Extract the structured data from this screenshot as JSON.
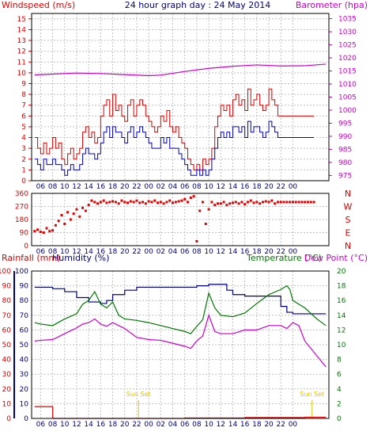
{
  "header": {
    "left": "Windspeed (m/s)",
    "center": "24 hour graph day : 24 May 2014",
    "right": "Barometer (hpa)"
  },
  "colors": {
    "frame": "#000000",
    "grid": "#c0c0c0",
    "red": "#e00000",
    "blue": "#0000cc",
    "magenta": "#cc00cc",
    "green": "#007700",
    "navy": "#000080",
    "olive": "#b0a000",
    "sunset": "#e0c000"
  },
  "chart_data": [
    {
      "type": "line",
      "name": "wind-panel",
      "x_ticks": [
        "06",
        "08",
        "10",
        "12",
        "14",
        "16",
        "18",
        "20",
        "22",
        "00",
        "02",
        "04",
        "06",
        "08",
        "10",
        "12",
        "14",
        "16",
        "18",
        "20",
        "22",
        "00"
      ],
      "y_left": {
        "ticks": [
          0,
          1,
          2,
          3,
          4,
          5,
          6,
          7,
          8,
          9,
          10,
          11,
          12,
          13,
          14,
          15
        ],
        "range": [
          0,
          15.5
        ]
      },
      "y_right": {
        "ticks": [
          975,
          980,
          985,
          990,
          995,
          1000,
          1005,
          1010,
          1015,
          1020,
          1025,
          1030,
          1035
        ],
        "range": [
          973,
          1037
        ]
      },
      "series": [
        {
          "role": "gust",
          "color": "red",
          "x": [
            5,
            5.5,
            6,
            6.5,
            7,
            7.5,
            8,
            8.5,
            9,
            9.5,
            10,
            10.5,
            11,
            11.5,
            12,
            12.5,
            13,
            13.5,
            14,
            14.5,
            15,
            15.5,
            16,
            16.5,
            17,
            17.5,
            18,
            18.5,
            19,
            19.5,
            20,
            20.5,
            21,
            21.5,
            22,
            22.5,
            23,
            23.5,
            24,
            24.5,
            25,
            25.5,
            26,
            26.5,
            27,
            27.5,
            28,
            28.5,
            29,
            29.5,
            30,
            30.5,
            31,
            31.5,
            32,
            32.5,
            33,
            33.5,
            34,
            34.5,
            35,
            35.5,
            36,
            36.5,
            37,
            37.5,
            38,
            38.5,
            39,
            39.5,
            40,
            40.5,
            41,
            41.5,
            42,
            42.5,
            43,
            43.5,
            44,
            44.5,
            45,
            45.5,
            46,
            46.5,
            47,
            47.5,
            48,
            48.5,
            49,
            49.5,
            50,
            50.5,
            51,
            51.5
          ],
          "values": [
            4.0,
            3.0,
            2.5,
            3.5,
            2.5,
            3.0,
            4.0,
            3.0,
            3.5,
            2.0,
            1.5,
            2.5,
            3.0,
            2.0,
            2.5,
            3.0,
            4.5,
            5.0,
            4.0,
            4.5,
            3.5,
            4.0,
            6.0,
            7.0,
            7.5,
            6.0,
            8.0,
            6.5,
            7.0,
            6.0,
            5.5,
            7.0,
            7.5,
            6.0,
            7.0,
            7.5,
            7.0,
            6.0,
            5.5,
            5.0,
            4.5,
            5.0,
            6.0,
            5.5,
            6.5,
            5.0,
            4.5,
            5.0,
            4.0,
            3.5,
            3.0,
            2.0,
            1.5,
            1.0,
            1.5,
            1.0,
            2.0,
            1.5,
            2.0,
            3.0,
            5.0,
            6.0,
            7.0,
            6.5,
            7.0,
            6.0,
            7.5,
            8.0,
            7.0,
            7.5,
            6.5,
            8.5,
            7.0,
            7.5,
            8.0,
            7.0,
            6.5,
            7.0,
            8.5,
            7.5,
            7.0,
            6.0,
            6.0,
            6.0,
            6.0,
            6.0,
            6.0,
            6.0,
            6.0,
            6.0,
            6.0,
            6.0,
            6.0,
            6.0
          ]
        },
        {
          "role": "average",
          "color": "blue",
          "x": [
            5,
            5.5,
            6,
            6.5,
            7,
            7.5,
            8,
            8.5,
            9,
            9.5,
            10,
            10.5,
            11,
            11.5,
            12,
            12.5,
            13,
            13.5,
            14,
            14.5,
            15,
            15.5,
            16,
            16.5,
            17,
            17.5,
            18,
            18.5,
            19,
            19.5,
            20,
            20.5,
            21,
            21.5,
            22,
            22.5,
            23,
            23.5,
            24,
            24.5,
            25,
            25.5,
            26,
            26.5,
            27,
            27.5,
            28,
            28.5,
            29,
            29.5,
            30,
            30.5,
            31,
            31.5,
            32,
            32.5,
            33,
            33.5,
            34,
            34.5,
            35,
            35.5,
            36,
            36.5,
            37,
            37.5,
            38,
            38.5,
            39,
            39.5,
            40,
            40.5,
            41,
            41.5,
            42,
            42.5,
            43,
            43.5,
            44,
            44.5,
            45,
            45.5,
            46,
            46.5,
            47,
            47.5,
            48,
            48.5,
            49,
            49.5,
            50,
            50.5,
            51,
            51.5
          ],
          "values": [
            2.0,
            1.5,
            1.0,
            2.0,
            1.5,
            1.5,
            2.0,
            1.5,
            1.5,
            1.0,
            0.5,
            1.0,
            1.5,
            1.0,
            1.0,
            1.5,
            2.5,
            3.0,
            2.5,
            2.5,
            2.0,
            2.5,
            3.5,
            4.5,
            5.0,
            4.0,
            5.0,
            4.5,
            4.5,
            4.0,
            3.5,
            4.5,
            5.0,
            4.0,
            4.5,
            5.0,
            4.5,
            4.0,
            3.5,
            3.0,
            3.0,
            3.0,
            4.0,
            3.5,
            4.0,
            3.0,
            3.0,
            3.0,
            2.5,
            2.0,
            1.5,
            1.0,
            0.5,
            0.5,
            1.0,
            0.5,
            1.0,
            0.5,
            1.0,
            2.0,
            3.0,
            4.0,
            4.5,
            4.0,
            4.5,
            4.0,
            5.0,
            5.0,
            4.5,
            5.0,
            4.0,
            5.5,
            4.5,
            5.0,
            5.0,
            4.5,
            4.0,
            4.5,
            5.5,
            5.0,
            4.5,
            4.0,
            4.0,
            4.0,
            4.0,
            4.0,
            4.0,
            4.0,
            4.0,
            4.0,
            4.0,
            4.0,
            4.0,
            4.0
          ]
        },
        {
          "role": "barometer",
          "color": "magenta",
          "axis": "right",
          "x": [
            5,
            8,
            12,
            16,
            20,
            24,
            26,
            30,
            34,
            38,
            42,
            46,
            50,
            53.5
          ],
          "values": [
            1013.5,
            1013.8,
            1014.2,
            1014.0,
            1013.6,
            1013.2,
            1013.4,
            1014.8,
            1016.0,
            1016.8,
            1017.3,
            1016.9,
            1017.0,
            1017.6
          ]
        }
      ]
    },
    {
      "type": "scatter",
      "name": "direction-panel",
      "x_ticks": [
        "06",
        "08",
        "10",
        "12",
        "14",
        "16",
        "18",
        "20",
        "22",
        "00",
        "02",
        "04",
        "06",
        "08",
        "10",
        "12",
        "14",
        "16",
        "18",
        "20",
        "22",
        "00"
      ],
      "y_left": {
        "ticks": [
          0,
          90,
          180,
          270,
          360
        ],
        "range": [
          0,
          360
        ]
      },
      "y_right_labels": [
        "N",
        "W",
        "S",
        "E",
        "N"
      ],
      "series": [
        {
          "role": "direction",
          "color": "red",
          "x": [
            5,
            5.5,
            6,
            6.5,
            7,
            7.5,
            8,
            8.5,
            9,
            9.5,
            10,
            10.5,
            11,
            11.5,
            12,
            12.5,
            13,
            13.5,
            14,
            14.5,
            15,
            15.5,
            16,
            16.5,
            17,
            17.5,
            18,
            18.5,
            19,
            19.5,
            20,
            20.5,
            21,
            21.5,
            22,
            22.5,
            23,
            23.5,
            24,
            24.5,
            25,
            25.5,
            26,
            26.5,
            27,
            27.5,
            28,
            28.5,
            29,
            29.5,
            30,
            30.5,
            31,
            31.5,
            32,
            32.5,
            33,
            33.5,
            34,
            34.5,
            35,
            35.5,
            36,
            36.5,
            37,
            37.5,
            38,
            38.5,
            39,
            39.5,
            40,
            40.5,
            41,
            41.5,
            42,
            42.5,
            43,
            43.5,
            44,
            44.5,
            45,
            45.5,
            46,
            46.5,
            47,
            47.5,
            48,
            48.5,
            49,
            49.5,
            50,
            50.5,
            51,
            51.5
          ],
          "values": [
            100,
            110,
            95,
            90,
            120,
            100,
            105,
            140,
            170,
            210,
            150,
            230,
            180,
            220,
            250,
            200,
            260,
            240,
            280,
            310,
            300,
            290,
            300,
            310,
            295,
            300,
            305,
            300,
            290,
            310,
            300,
            295,
            305,
            300,
            310,
            295,
            300,
            290,
            305,
            300,
            310,
            295,
            300,
            290,
            300,
            310,
            295,
            300,
            305,
            310,
            320,
            300,
            330,
            340,
            30,
            240,
            300,
            150,
            250,
            300,
            280,
            290,
            290,
            300,
            280,
            290,
            295,
            300,
            290,
            300,
            285,
            300,
            310,
            295,
            300,
            290,
            300,
            305,
            300,
            310,
            290,
            300,
            300,
            300,
            300,
            300,
            300,
            300,
            300,
            300,
            300,
            300,
            300,
            300
          ]
        }
      ]
    },
    {
      "type": "line",
      "name": "temperature-humidity-panel",
      "x_ticks": [
        "06",
        "08",
        "10",
        "12",
        "14",
        "16",
        "18",
        "20",
        "22",
        "00",
        "02",
        "04",
        "06",
        "08",
        "10",
        "12",
        "14",
        "16",
        "18",
        "20",
        "22",
        "00"
      ],
      "y_rain": {
        "ticks": [
          0,
          10,
          20,
          30,
          40,
          50,
          60,
          70,
          80,
          90,
          100
        ],
        "range": [
          0,
          100
        ]
      },
      "y_humidity": {
        "ticks": [
          0,
          10,
          20,
          30,
          40,
          50,
          60,
          70,
          80,
          90,
          100
        ],
        "range": [
          0,
          100
        ]
      },
      "y_temp": {
        "ticks": [
          0,
          2,
          4,
          6,
          8,
          10,
          12,
          14,
          16,
          18,
          20
        ],
        "range": [
          0,
          20
        ]
      },
      "labels": {
        "rainfall": "Rainfall (mm)",
        "humidity": "Humidity (%)",
        "temperature": "Temperature (°C)",
        "dew_point": "Dew Point (°C)"
      },
      "annotations": [
        {
          "text": "Sun Set",
          "x": 22.3
        },
        {
          "text": "Sun Set",
          "x": 51.2
        }
      ],
      "series": [
        {
          "role": "humidity",
          "color": "navy",
          "axis": "humidity",
          "x": [
            5,
            8,
            10,
            12,
            14,
            16,
            17,
            18,
            20,
            22,
            24,
            26,
            28,
            30,
            32,
            34,
            36,
            37,
            38,
            40,
            42,
            44,
            46,
            47,
            48,
            50,
            52,
            53.5
          ],
          "values": [
            89,
            88,
            86,
            82,
            79,
            78,
            80,
            84,
            87,
            89,
            89,
            89,
            89,
            89,
            90,
            91,
            91,
            87,
            84,
            83,
            83,
            83,
            76,
            72,
            71,
            71,
            71,
            71
          ]
        },
        {
          "role": "temperature",
          "color": "green",
          "axis": "temp",
          "x": [
            5,
            6,
            8,
            10,
            12,
            13,
            14,
            15,
            16,
            17,
            18,
            19,
            20,
            22,
            24,
            26,
            28,
            30,
            31,
            32,
            33,
            34,
            35,
            36,
            38,
            40,
            42,
            44,
            46,
            47,
            47.5,
            48,
            49,
            50,
            52,
            53.5
          ],
          "values": [
            13.0,
            12.8,
            12.6,
            13.5,
            14.2,
            15.5,
            16.0,
            17.2,
            15.5,
            15.0,
            15.8,
            14.0,
            13.5,
            13.3,
            13.0,
            12.6,
            12.2,
            11.8,
            11.5,
            12.5,
            13.4,
            17.0,
            15.0,
            14.0,
            13.8,
            14.3,
            15.6,
            16.8,
            17.5,
            18.0,
            17.5,
            16.0,
            15.5,
            15.0,
            13.5,
            12.6
          ]
        },
        {
          "role": "dew_point",
          "color": "magenta",
          "axis": "temp",
          "x": [
            5,
            6,
            8,
            10,
            12,
            13,
            14,
            15,
            16,
            17,
            18,
            20,
            22,
            24,
            26,
            28,
            30,
            31,
            32,
            33,
            34,
            35,
            36,
            38,
            40,
            42,
            44,
            46,
            47,
            48,
            49,
            50,
            52,
            53.5
          ],
          "values": [
            10.5,
            10.6,
            10.7,
            11.5,
            12.3,
            12.8,
            13.0,
            13.5,
            12.8,
            12.5,
            13.0,
            12.2,
            11.0,
            10.7,
            10.6,
            10.2,
            9.8,
            9.5,
            10.5,
            11.2,
            14.0,
            11.8,
            11.5,
            11.5,
            12.0,
            12.0,
            12.6,
            12.6,
            12.2,
            13.0,
            12.6,
            10.5,
            8.5,
            7.0
          ]
        },
        {
          "role": "rainfall",
          "color": "red",
          "axis": "rain",
          "x": [
            5,
            6,
            7,
            8,
            8.01,
            20,
            30,
            40,
            50,
            53.5
          ],
          "values": [
            8,
            8,
            8,
            8,
            0,
            0,
            0.3,
            0.6,
            0.8,
            0.8
          ]
        }
      ]
    }
  ]
}
